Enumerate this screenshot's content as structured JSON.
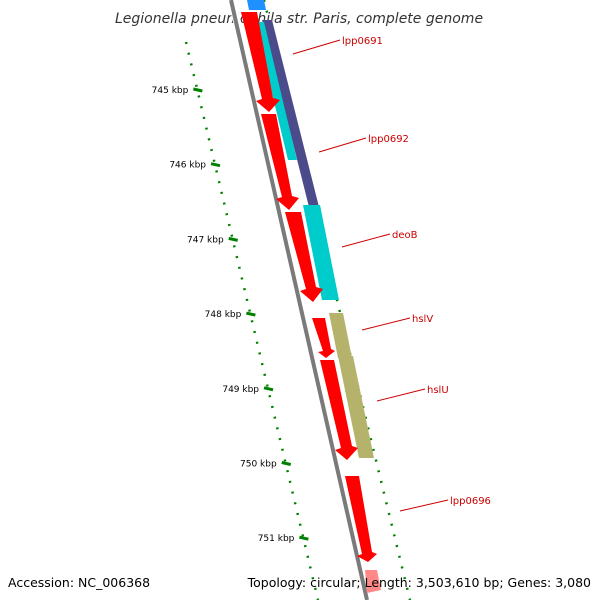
{
  "title": "Legionella pneumophila str. Paris, complete genome",
  "accession": "Accession: NC_006368",
  "topology": "Topology: circular; Length: 3,503,610 bp; Genes: 3,080",
  "colors": {
    "backbone": "#7a7a7a",
    "feature_red": "#ff0000",
    "feature_cyan": "#00cccc",
    "feature_navy": "#4b4b8c",
    "feature_khaki": "#b5b36b",
    "feature_blue": "#1e90ff",
    "tick_green": "#008000",
    "label_red": "#cc0000"
  },
  "ticks": [
    {
      "label": "745 kbp",
      "kbp": 745
    },
    {
      "label": "746 kbp",
      "kbp": 746
    },
    {
      "label": "747 kbp",
      "kbp": 747
    },
    {
      "label": "748 kbp",
      "kbp": 748
    },
    {
      "label": "749 kbp",
      "kbp": 749
    },
    {
      "label": "750 kbp",
      "kbp": 750
    },
    {
      "label": "751 kbp",
      "kbp": 751
    }
  ],
  "genes": [
    {
      "label": "lpp0691"
    },
    {
      "label": "lpp0692"
    },
    {
      "label": "deoB"
    },
    {
      "label": "hslV"
    },
    {
      "label": "hslU"
    },
    {
      "label": "lpp0696"
    }
  ]
}
